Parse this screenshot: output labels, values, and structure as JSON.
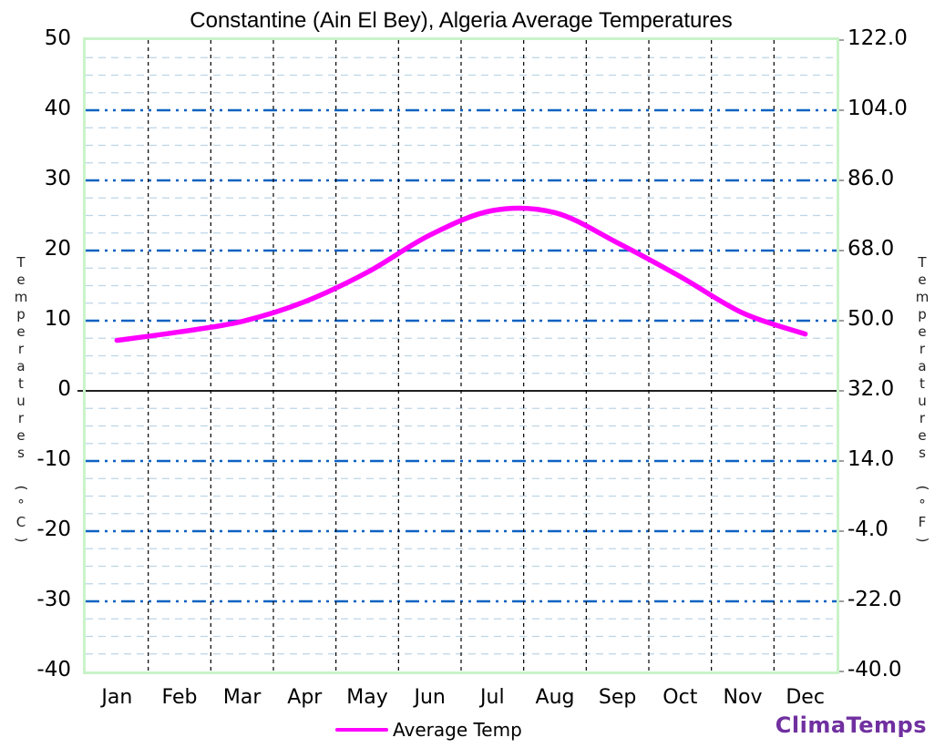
{
  "title": "Constantine (Ain El Bey), Algeria Average Temperatures",
  "branding": {
    "label": "ClimaTemps",
    "color": "#7030A0"
  },
  "legend": {
    "label": "Average Temp"
  },
  "axes": {
    "left_title": "Temperatures (°C)",
    "right_title": "Temperatures (°F)",
    "left_tick_labels": [
      "50",
      "40",
      "30",
      "20",
      "10",
      "0",
      "-10",
      "-20",
      "-30",
      "-40"
    ],
    "right_tick_labels": [
      "122.0",
      "104.0",
      "86.0",
      "68.0",
      "50.0",
      "32.0",
      "14.0",
      "-4.0",
      "-22.0",
      "-40.0"
    ],
    "month_labels": [
      "Jan",
      "Feb",
      "Mar",
      "Apr",
      "May",
      "Jun",
      "Jul",
      "Aug",
      "Sep",
      "Oct",
      "Nov",
      "Dec"
    ]
  },
  "chart_data": {
    "type": "line",
    "title": "Constantine (Ain El Bey), Algeria Average Temperatures",
    "categories": [
      "Jan",
      "Feb",
      "Mar",
      "Apr",
      "May",
      "Jun",
      "Jul",
      "Aug",
      "Sep",
      "Oct",
      "Nov",
      "Dec"
    ],
    "series": [
      {
        "name": "Average Temp",
        "values_c": [
          7.2,
          8.4,
          9.9,
          12.7,
          16.9,
          22.2,
          25.7,
          25.4,
          21.1,
          16.3,
          11.1,
          8.1
        ],
        "color": "#FF00FF"
      }
    ],
    "ylabel_left": "Temperatures (°C)",
    "ylabel_right": "Temperatures (°F)",
    "ylim_c": [
      -40,
      50
    ],
    "ylim_f": [
      -40,
      122
    ],
    "y_major_step_c": 10,
    "y_minor_step_c": 2.5,
    "zero_line": true,
    "grid": "on",
    "legend_position": "bottom-center",
    "colors": {
      "line": "#FF00FF",
      "major_grid": "#0D62C1",
      "minor_grid": "#BDD5E7",
      "vertical_grid": "#000000",
      "zero_line": "#000000",
      "plot_border": "#C9F3C9",
      "tick": "#777777",
      "text": "#000000"
    }
  }
}
